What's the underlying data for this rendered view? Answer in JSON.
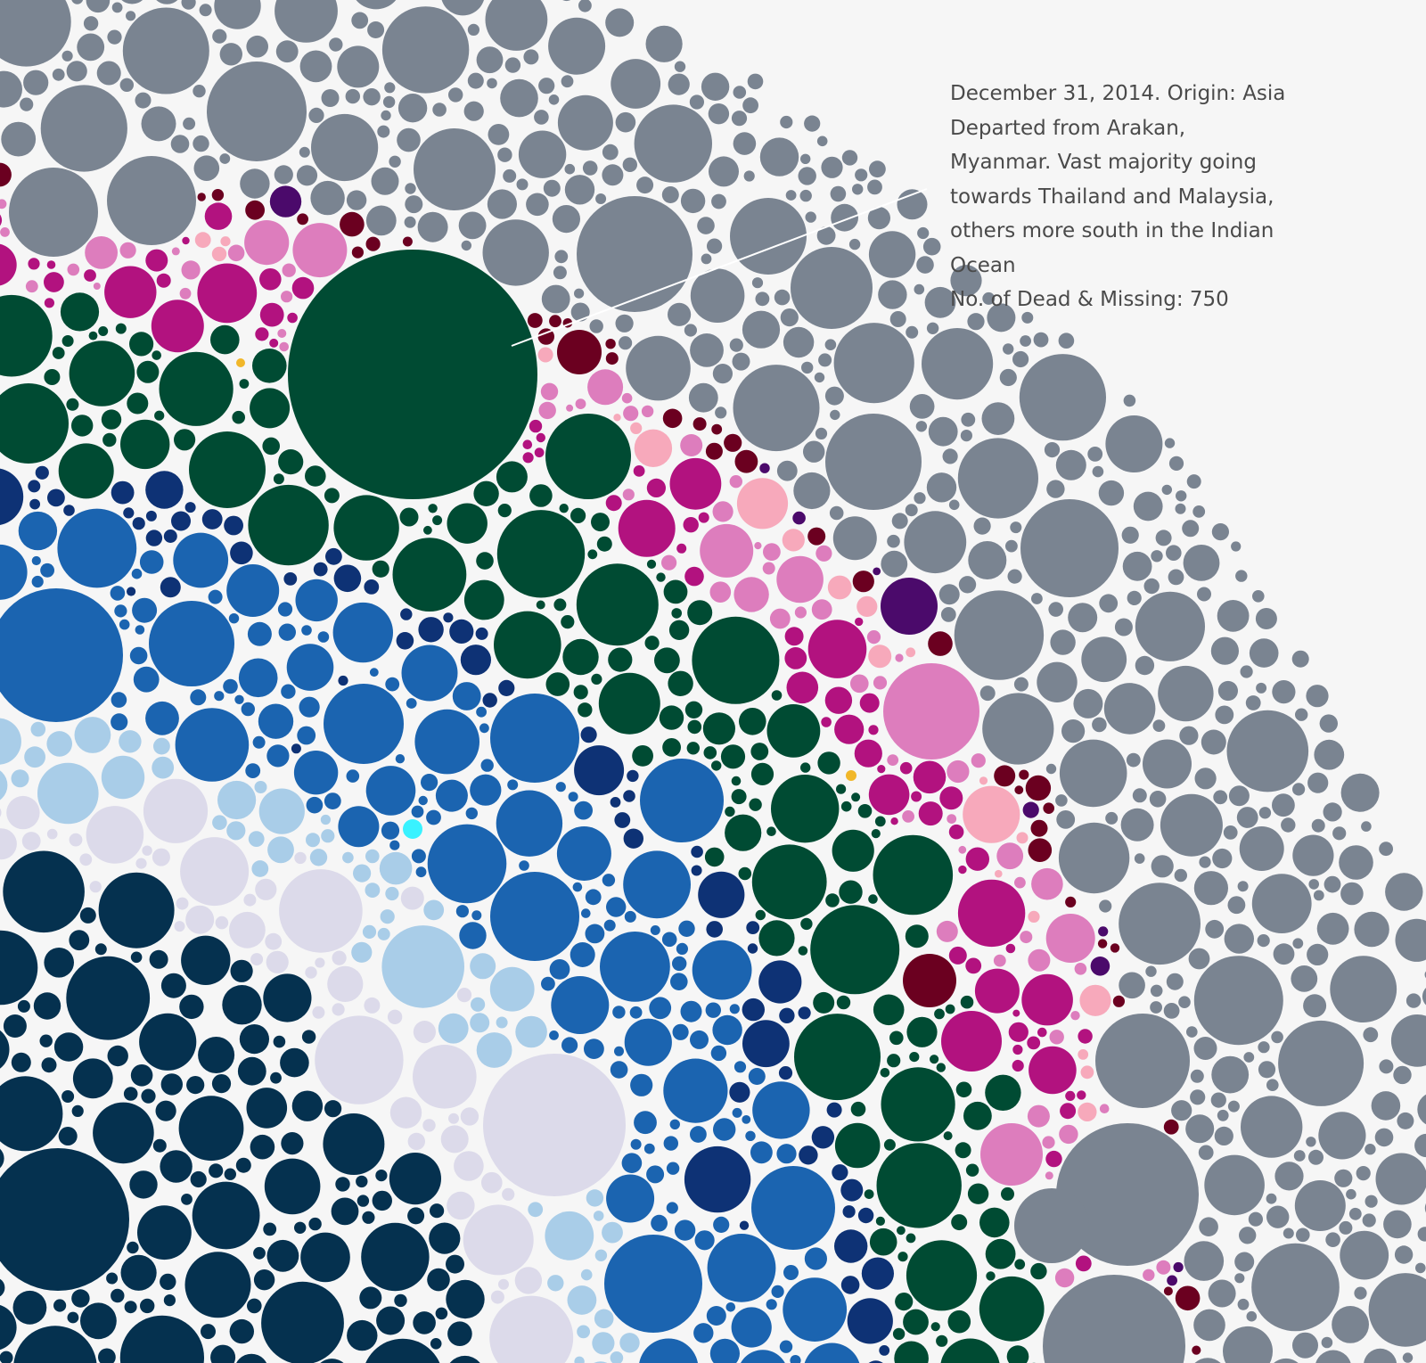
{
  "chart_data": {
    "type": "bubble",
    "description": "",
    "annotation": {
      "lines": [
        "December 31, 2014. Origin: Asia",
        "Departed from Arakan,",
        "Myanmar. Vast majority going",
        "towards Thailand and Malaysia,",
        "others more south in the Indian",
        "Ocean",
        "No. of Dead & Missing: 750"
      ],
      "date": "December 31, 2014",
      "origin": "Asia",
      "dead_and_missing": 750
    },
    "colors": {
      "background": "#f6f6f6",
      "grey": "#7a8491",
      "dark_red": "#6b0020",
      "purple": "#4b0a6b",
      "magenta": "#b2127f",
      "light_pink": "#dd7dbd",
      "pale_pink": "#f7a9bb",
      "dark_green": "#004b33",
      "navy": "#0e3275",
      "blue": "#1b64b0",
      "light_blue": "#a9cde8",
      "lavender": "#dcdaea",
      "dark_navy": "#05314f",
      "cyan": "#39f2ff",
      "gold": "#f1b72a"
    }
  }
}
